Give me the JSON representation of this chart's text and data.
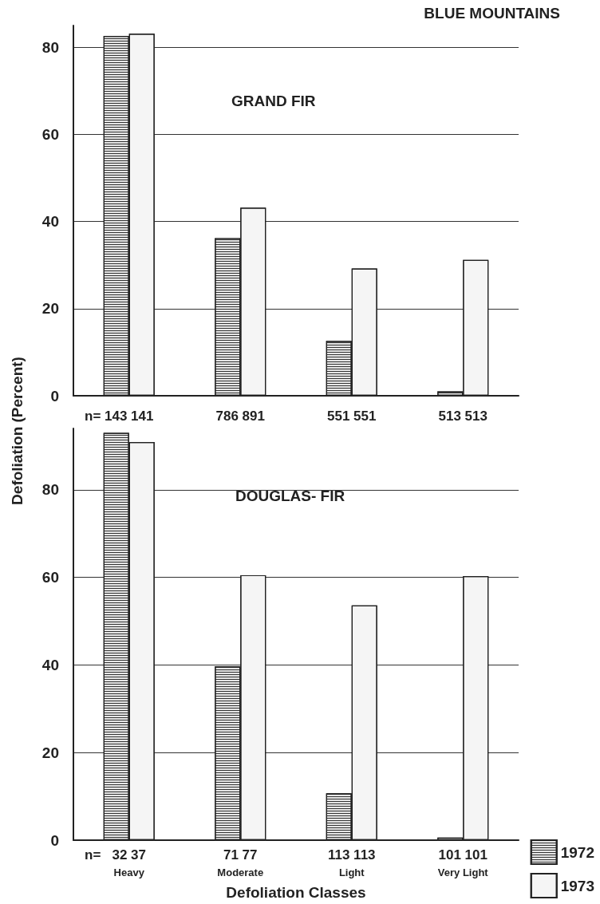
{
  "chart_data": [
    {
      "type": "bar",
      "title": "BLUE MOUNTAINS",
      "subtitle": "GRAND FIR",
      "ylabel": "Defoliation (Percent)",
      "categories": [
        null,
        null,
        null,
        null
      ],
      "series": [
        {
          "color": "#e6e6e6",
          "values": [
            82.6,
            36.2,
            12.6,
            1.0
          ]
        },
        {
          "color": "#f5f5f5",
          "values": [
            83.1,
            43.2,
            29.2,
            31.2
          ]
        }
      ],
      "ylim": [
        0,
        85
      ],
      "yticks": [
        0,
        20,
        40,
        60,
        80
      ],
      "grid": "y",
      "annotations": [
        "n=",
        "143 141",
        "786 891",
        "551 551",
        "513 513"
      ]
    },
    {
      "type": "bar",
      "title": "DOUGLAS- FIR",
      "xlabel": "Defoliation Classes",
      "categories": [
        "Heavy",
        "Moderate",
        "Light",
        "Very Light"
      ],
      "series": [
        {
          "name": "1972",
          "color": "#e6e6e6",
          "values": [
            93.0,
            39.7,
            10.7,
            0.6
          ]
        },
        {
          "name": "1973",
          "color": "#f5f5f5",
          "values": [
            90.9,
            60.5,
            53.6,
            60.3
          ]
        }
      ],
      "ylim": [
        0,
        94
      ],
      "yticks": [
        0,
        20,
        40,
        60,
        80
      ],
      "grid": "y",
      "legend": "bottom right",
      "annotations": [
        "n=",
        "32 37",
        "71 77",
        "113 113",
        "101 101"
      ]
    }
  ]
}
